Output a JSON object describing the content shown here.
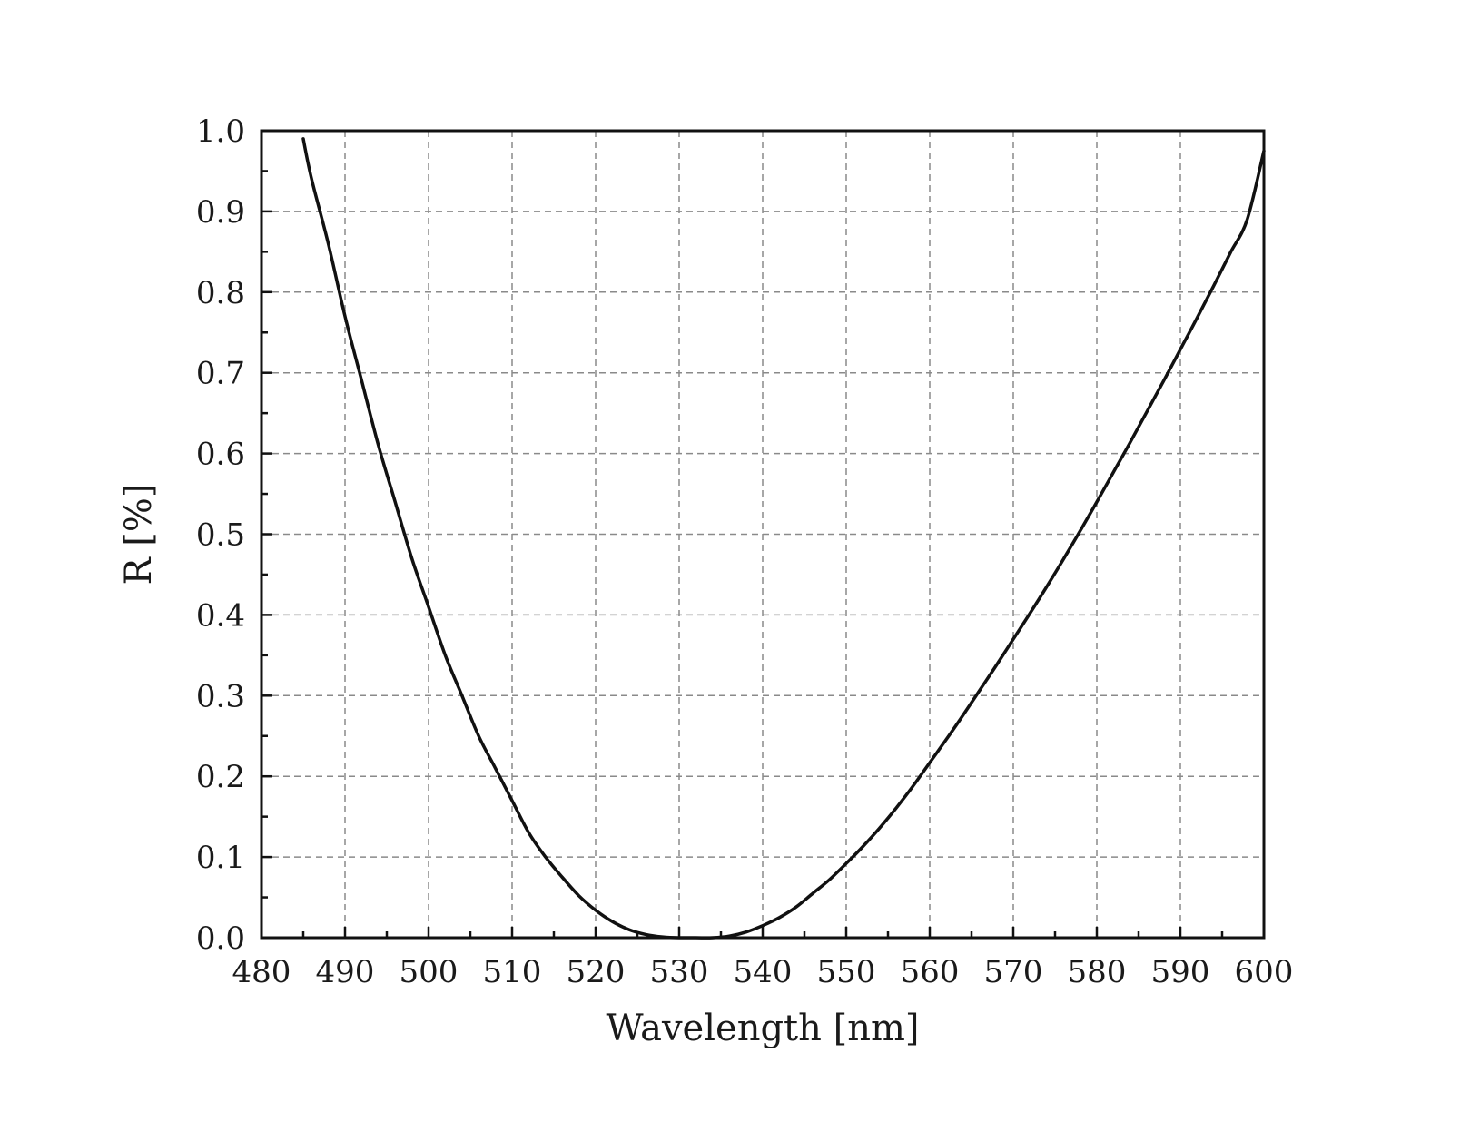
{
  "chart_data": {
    "type": "line",
    "title": "",
    "xlabel": "Wavelength [nm]",
    "ylabel": "R [%]",
    "xlim": [
      480,
      600
    ],
    "ylim": [
      0.0,
      1.0
    ],
    "grid": true,
    "x_ticks": [
      "480",
      "490",
      "500",
      "510",
      "520",
      "530",
      "540",
      "550",
      "560",
      "570",
      "580",
      "590",
      "600"
    ],
    "y_ticks": [
      "0.0",
      "0.1",
      "0.2",
      "0.3",
      "0.4",
      "0.5",
      "0.6",
      "0.7",
      "0.8",
      "0.9",
      "1.0"
    ],
    "series": [
      {
        "color": "#111111",
        "x": [
          485,
          486,
          488,
          490,
          492,
          494,
          496,
          498,
          500,
          502,
          504,
          506,
          508,
          510,
          512,
          514,
          516,
          518,
          520,
          522,
          524,
          526,
          528,
          530,
          532,
          534,
          536,
          538,
          540,
          542,
          544,
          546,
          548,
          550,
          552,
          554,
          556,
          558,
          560,
          562,
          564,
          566,
          568,
          570,
          572,
          574,
          576,
          578,
          580,
          582,
          584,
          586,
          588,
          590,
          592,
          594,
          596,
          598,
          600
        ],
        "y": [
          0.99,
          0.94,
          0.86,
          0.77,
          0.69,
          0.61,
          0.54,
          0.47,
          0.41,
          0.35,
          0.3,
          0.25,
          0.21,
          0.17,
          0.13,
          0.1,
          0.075,
          0.052,
          0.034,
          0.02,
          0.01,
          0.004,
          0.001,
          0.0,
          0.0,
          0.0,
          0.002,
          0.007,
          0.015,
          0.025,
          0.038,
          0.055,
          0.072,
          0.092,
          0.113,
          0.136,
          0.161,
          0.188,
          0.217,
          0.246,
          0.276,
          0.307,
          0.338,
          0.37,
          0.402,
          0.435,
          0.469,
          0.504,
          0.54,
          0.577,
          0.614,
          0.652,
          0.69,
          0.729,
          0.768,
          0.808,
          0.849,
          0.89,
          0.975
        ]
      }
    ]
  }
}
